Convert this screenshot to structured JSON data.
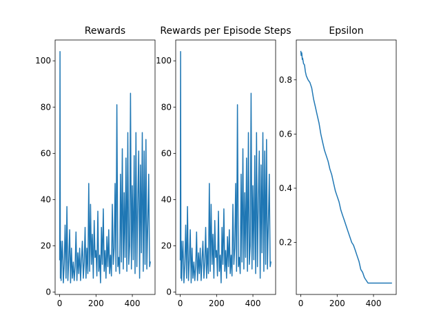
{
  "chart_data": [
    {
      "type": "line",
      "title": "Rewards",
      "xlabel": "",
      "ylabel": "",
      "xlim": [
        -25,
        525
      ],
      "ylim": [
        -1,
        109
      ],
      "xticks": [
        0,
        200,
        400
      ],
      "yticks": [
        0,
        20,
        40,
        60,
        80,
        100
      ],
      "grid": false,
      "color": "#1f77b4",
      "series": [
        {
          "x": [
            0,
            2,
            4,
            6,
            8,
            10,
            15,
            20,
            25,
            30,
            35,
            40,
            45,
            50,
            55,
            60,
            65,
            70,
            75,
            80,
            85,
            90,
            95,
            100,
            105,
            110,
            115,
            120,
            125,
            130,
            135,
            140,
            145,
            150,
            155,
            160,
            165,
            170,
            175,
            180,
            185,
            190,
            195,
            200,
            205,
            210,
            215,
            220,
            225,
            230,
            235,
            240,
            245,
            250,
            255,
            260,
            265,
            270,
            275,
            280,
            285,
            290,
            295,
            300,
            305,
            310,
            315,
            320,
            325,
            330,
            335,
            340,
            345,
            350,
            355,
            360,
            365,
            370,
            375,
            380,
            385,
            390,
            395,
            400,
            405,
            410,
            415,
            420,
            425,
            430,
            435,
            440,
            445,
            450,
            455,
            460,
            465,
            470,
            475,
            480,
            485,
            490,
            495,
            499
          ],
          "y": [
            14,
            104,
            6,
            22,
            5,
            13,
            22,
            4,
            12,
            29,
            6,
            37,
            5,
            14,
            27,
            4,
            19,
            6,
            13,
            5,
            11,
            26,
            5,
            17,
            8,
            19,
            5,
            14,
            22,
            6,
            13,
            28,
            6,
            19,
            8,
            47,
            9,
            38,
            12,
            25,
            6,
            31,
            15,
            18,
            7,
            35,
            9,
            16,
            4,
            28,
            12,
            36,
            9,
            18,
            6,
            24,
            11,
            27,
            8,
            16,
            7,
            38,
            12,
            19,
            47,
            9,
            81,
            11,
            15,
            8,
            51,
            13,
            62,
            10,
            43,
            15,
            58,
            9,
            69,
            12,
            20,
            86,
            10,
            46,
            14,
            59,
            8,
            69,
            11,
            40,
            61,
            6,
            55,
            17,
            69,
            9,
            61,
            12,
            66,
            10,
            30,
            51,
            11,
            13
          ]
        }
      ]
    },
    {
      "type": "line",
      "title": "Rewards per Episode Steps",
      "xlabel": "",
      "ylabel": "",
      "xlim": [
        -25,
        525
      ],
      "ylim": [
        -1,
        109
      ],
      "xticks": [
        0,
        200,
        400
      ],
      "yticks": [
        0,
        20,
        40,
        60,
        80,
        100
      ],
      "grid": false,
      "color": "#1f77b4",
      "series": [
        {
          "x": [
            0,
            2,
            4,
            6,
            8,
            10,
            15,
            20,
            25,
            30,
            35,
            40,
            45,
            50,
            55,
            60,
            65,
            70,
            75,
            80,
            85,
            90,
            95,
            100,
            105,
            110,
            115,
            120,
            125,
            130,
            135,
            140,
            145,
            150,
            155,
            160,
            165,
            170,
            175,
            180,
            185,
            190,
            195,
            200,
            205,
            210,
            215,
            220,
            225,
            230,
            235,
            240,
            245,
            250,
            255,
            260,
            265,
            270,
            275,
            280,
            285,
            290,
            295,
            300,
            305,
            310,
            315,
            320,
            325,
            330,
            335,
            340,
            345,
            350,
            355,
            360,
            365,
            370,
            375,
            380,
            385,
            390,
            395,
            400,
            405,
            410,
            415,
            420,
            425,
            430,
            435,
            440,
            445,
            450,
            455,
            460,
            465,
            470,
            475,
            480,
            485,
            490,
            495,
            499
          ],
          "y": [
            14,
            104,
            6,
            22,
            5,
            13,
            22,
            4,
            12,
            29,
            6,
            37,
            5,
            14,
            27,
            4,
            19,
            6,
            13,
            5,
            11,
            26,
            5,
            17,
            8,
            19,
            5,
            14,
            22,
            6,
            13,
            28,
            6,
            19,
            8,
            47,
            9,
            38,
            12,
            25,
            6,
            31,
            15,
            18,
            7,
            35,
            9,
            16,
            4,
            28,
            12,
            36,
            9,
            18,
            6,
            24,
            11,
            27,
            8,
            16,
            7,
            38,
            12,
            19,
            47,
            9,
            81,
            11,
            15,
            8,
            51,
            13,
            62,
            10,
            43,
            15,
            58,
            9,
            69,
            12,
            20,
            86,
            10,
            46,
            14,
            59,
            8,
            69,
            11,
            40,
            61,
            6,
            55,
            17,
            69,
            9,
            61,
            12,
            66,
            10,
            30,
            51,
            11,
            13
          ]
        }
      ]
    },
    {
      "type": "line",
      "title": "Epsilon",
      "xlabel": "",
      "ylabel": "",
      "xlim": [
        -25,
        525
      ],
      "ylim": [
        0.008,
        0.947
      ],
      "xticks": [
        0,
        200,
        400
      ],
      "yticks": [
        0.2,
        0.4,
        0.6,
        0.8
      ],
      "ytick_labels": [
        "0.2",
        "0.4",
        "0.6",
        "0.8"
      ],
      "grid": false,
      "color": "#1f77b4",
      "series": [
        {
          "x": [
            0,
            2,
            5,
            8,
            10,
            15,
            20,
            25,
            30,
            40,
            50,
            60,
            70,
            80,
            90,
            100,
            110,
            120,
            130,
            140,
            150,
            160,
            170,
            180,
            190,
            200,
            210,
            220,
            230,
            240,
            250,
            260,
            270,
            280,
            290,
            300,
            310,
            320,
            330,
            340,
            350,
            360,
            370,
            380,
            390,
            400,
            450,
            499
          ],
          "y": [
            0.905,
            0.89,
            0.9,
            0.875,
            0.88,
            0.86,
            0.855,
            0.83,
            0.815,
            0.8,
            0.79,
            0.77,
            0.73,
            0.7,
            0.67,
            0.64,
            0.6,
            0.57,
            0.54,
            0.52,
            0.5,
            0.47,
            0.45,
            0.42,
            0.39,
            0.37,
            0.35,
            0.32,
            0.3,
            0.28,
            0.26,
            0.24,
            0.22,
            0.2,
            0.19,
            0.17,
            0.15,
            0.13,
            0.1,
            0.09,
            0.07,
            0.06,
            0.05,
            0.05,
            0.05,
            0.05,
            0.05,
            0.05
          ]
        }
      ]
    }
  ]
}
